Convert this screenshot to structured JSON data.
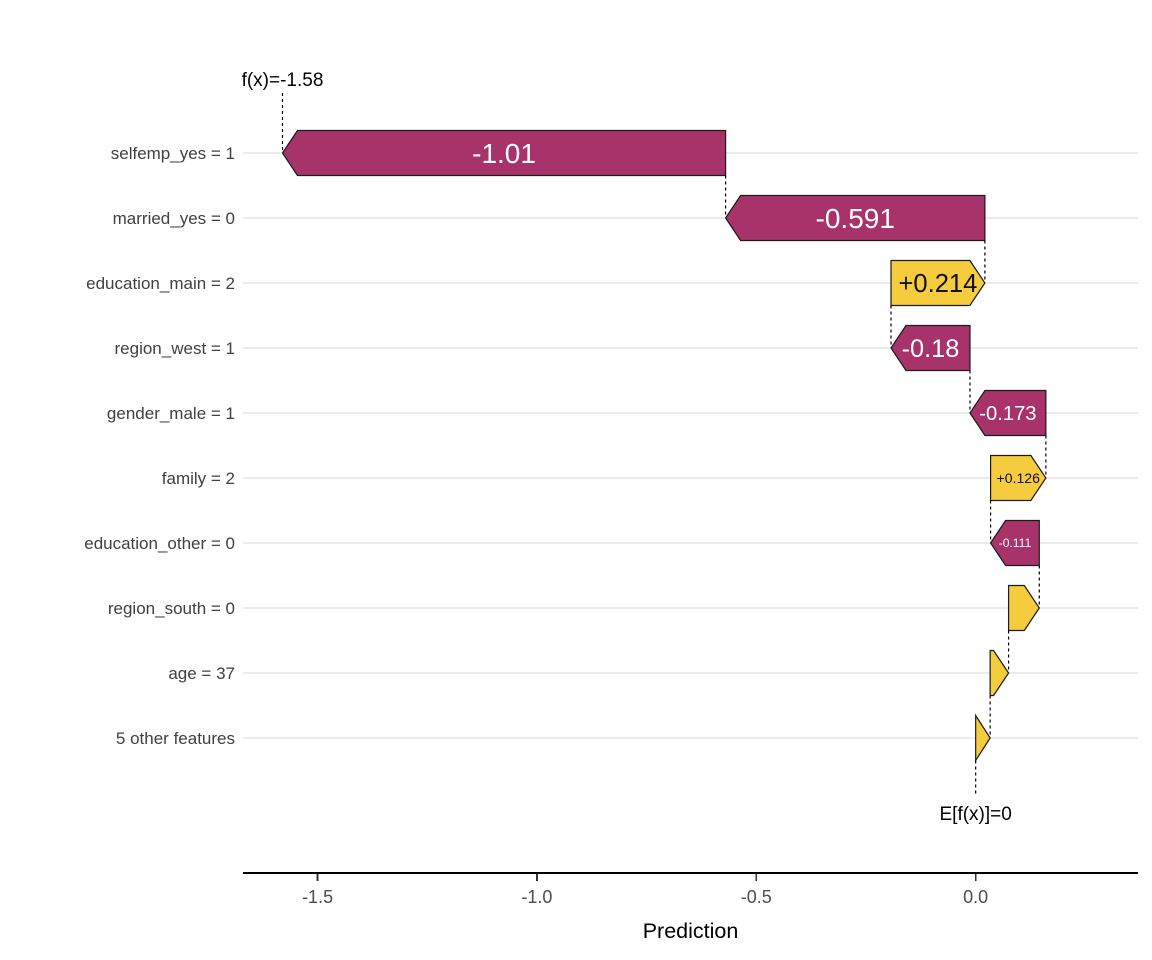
{
  "chart_data": {
    "type": "bar",
    "subtype": "shap-waterfall",
    "title": "",
    "xlabel": "Prediction",
    "xlim": [
      -1.67,
      0.37
    ],
    "grid": "horizontal-only",
    "legend": "none",
    "x_ticks": [
      {
        "value": -1.5,
        "label": "-1.5"
      },
      {
        "value": -1.0,
        "label": "-1.0"
      },
      {
        "value": -0.5,
        "label": "-0.5"
      },
      {
        "value": 0.0,
        "label": "0.0"
      }
    ],
    "fx": {
      "annotation": "f(x)=-1.58",
      "value": -1.58
    },
    "efx": {
      "annotation": "E[f(x)]=0",
      "value": 0
    },
    "features": [
      {
        "label": "selfemp_yes = 1",
        "value": -1.01,
        "value_label": "-1.01"
      },
      {
        "label": "married_yes = 0",
        "value": -0.591,
        "value_label": "-0.591"
      },
      {
        "label": "education_main = 2",
        "value": 0.214,
        "value_label": "+0.214"
      },
      {
        "label": "region_west = 1",
        "value": -0.18,
        "value_label": "-0.18"
      },
      {
        "label": "gender_male = 1",
        "value": -0.173,
        "value_label": "-0.173"
      },
      {
        "label": "family = 2",
        "value": 0.126,
        "value_label": "+0.126"
      },
      {
        "label": "education_other = 0",
        "value": -0.111,
        "value_label": "-0.111"
      },
      {
        "label": "region_south = 0",
        "value": 0.07,
        "value_label": ""
      },
      {
        "label": "age = 37",
        "value": 0.042,
        "value_label": ""
      },
      {
        "label": "5 other features",
        "value": 0.033,
        "value_label": ""
      }
    ],
    "colors": {
      "positive_fill": "#f4cc3e",
      "negative_fill": "#a8336b",
      "positive_text": "#111111",
      "negative_text": "#ffffff",
      "bar_border": "#1a1a1a",
      "grid_line": "#ebebeb",
      "axis_line": "#000000",
      "tick_mark": "#333333",
      "tick_text": "#4d4d4d",
      "feature_text": "#404040",
      "annotation_text": "#000000",
      "connector": "#000000",
      "background": "#ffffff"
    }
  }
}
